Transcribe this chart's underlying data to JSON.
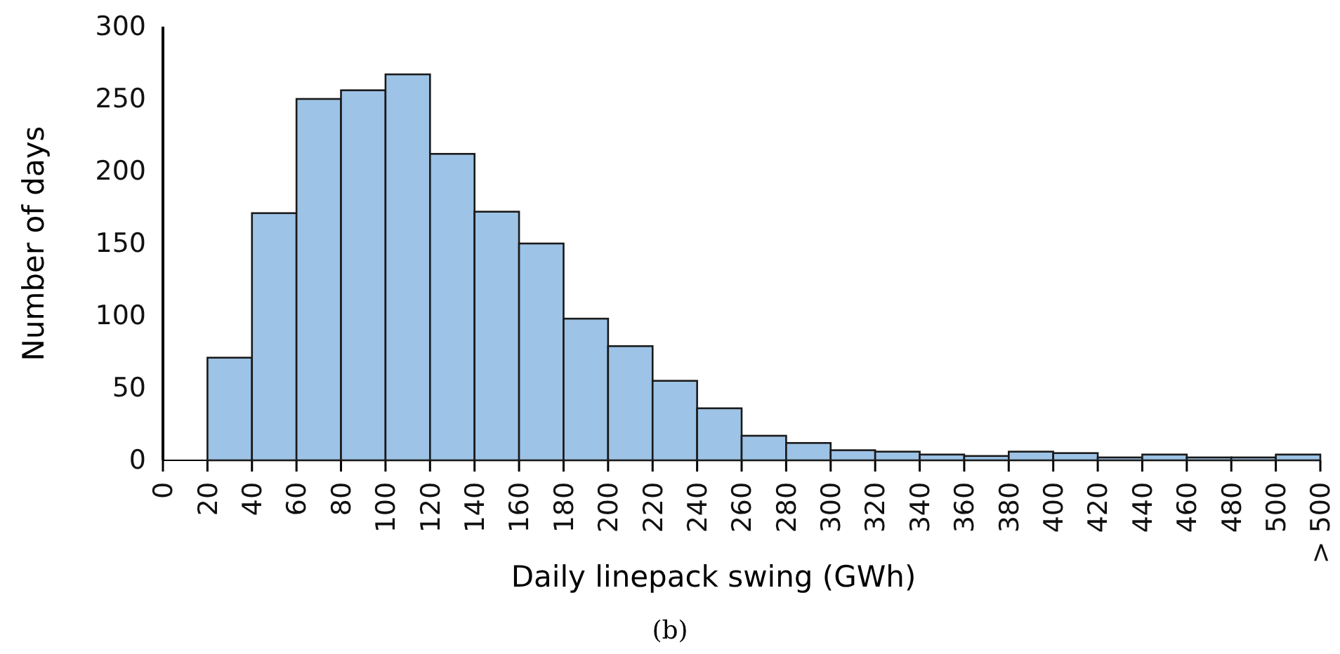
{
  "chart_data": {
    "type": "histogram",
    "xlabel": "Daily linepack swing (GWh)",
    "ylabel": "Number of days",
    "annotations": [
      "(b)"
    ],
    "bins": [
      20,
      40,
      60,
      80,
      100,
      120,
      140,
      160,
      180,
      200,
      220,
      240,
      260,
      280,
      300,
      320,
      340,
      360,
      380,
      400,
      420,
      440,
      460,
      480,
      500,
      520
    ],
    "values": [
      71,
      171,
      250,
      256,
      267,
      212,
      172,
      150,
      98,
      79,
      55,
      36,
      17,
      12,
      7,
      6,
      4,
      3,
      6,
      5,
      2,
      4,
      2,
      2,
      4
    ],
    "color": "#9dc3e6",
    "xlim": [
      0,
      520
    ],
    "xticks": [
      0,
      20,
      40,
      60,
      80,
      100,
      120,
      140,
      160,
      180,
      200,
      220,
      240,
      260,
      280,
      300,
      320,
      340,
      360,
      380,
      400,
      420,
      440,
      460,
      480,
      500,
      {
        "value": 520,
        "label": "> 500"
      }
    ],
    "ylim": [
      0,
      300
    ],
    "yticks": [
      0,
      50,
      100,
      150,
      200,
      250,
      300
    ],
    "grid": false
  }
}
